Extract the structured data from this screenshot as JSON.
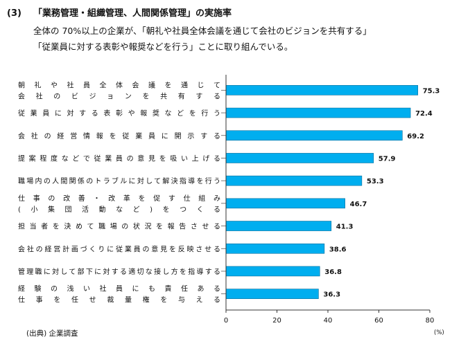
{
  "heading": {
    "number": "(3)",
    "title": "「業務管理・組織管理、人間関係管理」の実施率"
  },
  "subtitle_lines": [
    "全体の 70%以上の企業が、「朝礼や社員全体会議を通じて会社のビジョンを共有する」",
    "「従業員に対する表彰や報奨などを行う」ことに取り組んでいる。"
  ],
  "source": "(出典) 企業調査",
  "unit": "(%)",
  "colors": {
    "bar": "#00aeef",
    "bar_stroke": "#006a99",
    "axis": "#333333",
    "leader": "#555555"
  },
  "chart_data": {
    "type": "bar",
    "orientation": "horizontal",
    "categories": [
      [
        "朝礼や社員全体会議を通じて",
        "会社のビジョンを共有する"
      ],
      [
        "従業員に対する表彰や報奨などを行う"
      ],
      [
        "会社の経営情報を従業員に開示する"
      ],
      [
        "提案程度などで従業員の意見を吸い上げる"
      ],
      [
        "職場内の人間関係のトラブルに対して解決指導を行う"
      ],
      [
        "仕事の改善・改革を促す仕組み",
        "(小集団活動など)をつくる"
      ],
      [
        "担当者を決めて職場の状況を報告させる"
      ],
      [
        "会社の経営計画づくりに従業員の意見を反映させる"
      ],
      [
        "管理職に対して部下に対する適切な接し方を指導する"
      ],
      [
        "経験の浅い社員にも責任ある",
        "仕事を任せ裁量権を与える"
      ]
    ],
    "values": [
      75.3,
      72.4,
      69.2,
      57.9,
      53.3,
      46.7,
      41.3,
      38.6,
      36.8,
      36.3
    ],
    "value_labels": [
      "75.3",
      "72.4",
      "69.2",
      "57.9",
      "53.3",
      "46.7",
      "41.3",
      "38.6",
      "36.8",
      "36.3"
    ],
    "xlim": [
      0,
      80
    ],
    "xticks": [
      0,
      20,
      40,
      60,
      80
    ],
    "xtick_labels": [
      "0",
      "20",
      "40",
      "60",
      "80"
    ],
    "grid": false
  }
}
